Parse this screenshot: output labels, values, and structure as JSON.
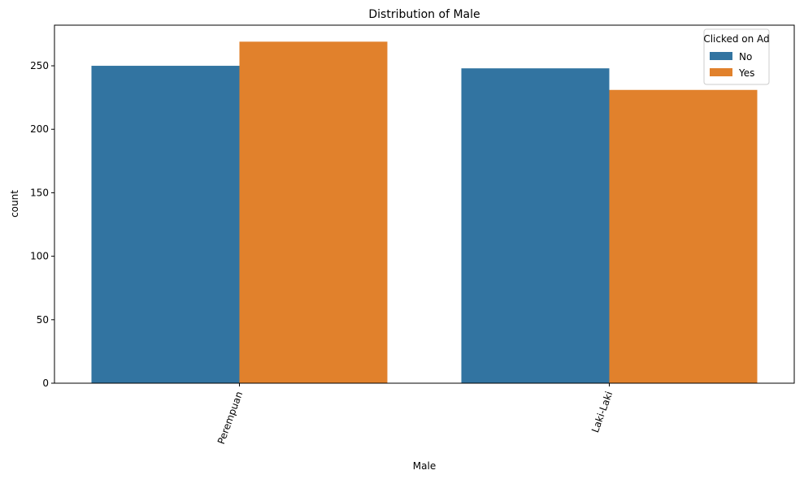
{
  "chart_data": {
    "type": "bar",
    "title": "Distribution of Male",
    "xlabel": "Male",
    "ylabel": "count",
    "categories": [
      "Perempuan",
      "Laki-Laki"
    ],
    "series": [
      {
        "name": "No",
        "values": [
          250,
          248
        ],
        "color": "#3274a1"
      },
      {
        "name": "Yes",
        "values": [
          269,
          231
        ],
        "color": "#e1812c"
      }
    ],
    "ylim": [
      0,
      282
    ],
    "yticks": [
      0,
      50,
      100,
      150,
      200,
      250
    ],
    "xtick_rotation": -70,
    "grid": false,
    "legend": {
      "title": "Clicked on Ad",
      "placement": "top-right"
    }
  }
}
